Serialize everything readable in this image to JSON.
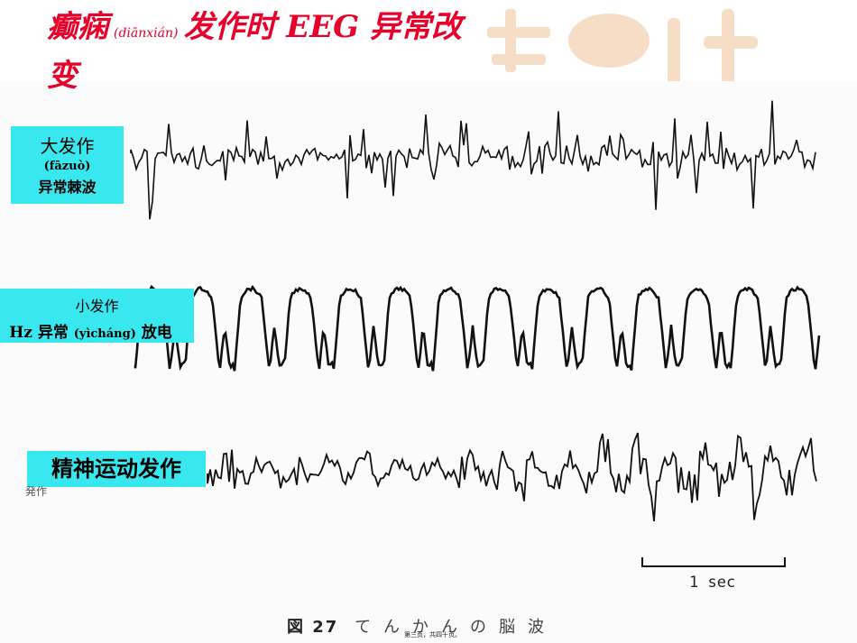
{
  "slide": {
    "title_main": "癫痫",
    "title_pinyin": "(diānxián)",
    "title_rest": "发作时 EEG 异常改",
    "title_wrap": "变",
    "accent_color": "#e8002a",
    "label_bg": "#38e8ee"
  },
  "labels": {
    "grand_mal": {
      "line1": "大发作",
      "line2": "(fāzuò)",
      "line3": "异常棘波"
    },
    "petit_mal": {
      "line1": "小发作",
      "line2": "Hz 异常",
      "line2_pinyin": "(yìcháng)",
      "line2_rest": "放电"
    },
    "psychomotor": {
      "line1": "精神运动发作"
    },
    "partial_text": "発作"
  },
  "figure": {
    "scale_label": "1 sec",
    "caption_fig": "図 27",
    "caption_text": "てんかんの脳波",
    "page_number": "第三页，共四十页。"
  }
}
